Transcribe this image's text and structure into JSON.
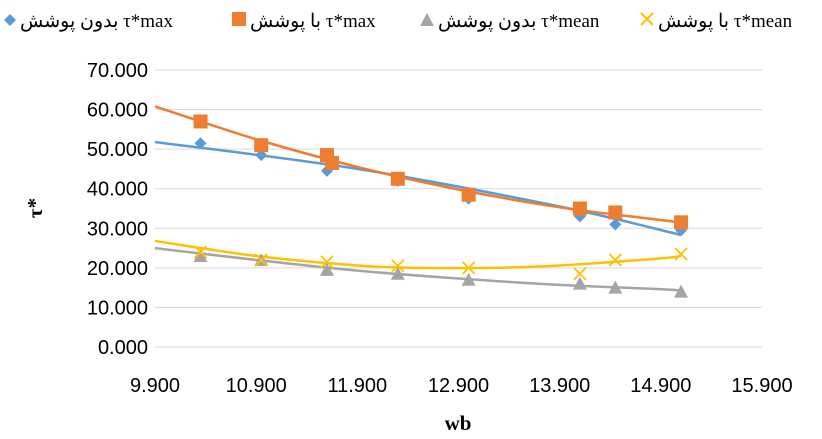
{
  "legend": [
    {
      "label": "بدون پوشش τ*max",
      "color": "#5B9BD5",
      "marker": "diamond"
    },
    {
      "label": "با پوشش τ*max",
      "color": "#ED7D31",
      "marker": "square"
    },
    {
      "label": "بدون پوشش τ*mean",
      "color": "#A5A5A5",
      "marker": "triangle"
    },
    {
      "label": "با پوشش τ*mean",
      "color": "#FFC000",
      "marker": "x"
    }
  ],
  "chart_data": {
    "type": "scatter",
    "xlabel": "wb",
    "ylabel": "τ*",
    "xlim": [
      9.9,
      15.9
    ],
    "ylim": [
      0,
      70
    ],
    "x_ticks": [
      "9.900",
      "10.900",
      "11.900",
      "12.900",
      "13.900",
      "14.900",
      "15.900"
    ],
    "y_ticks": [
      "0.000",
      "10.000",
      "20.000",
      "30.000",
      "40.000",
      "50.000",
      "60.000",
      "70.000"
    ],
    "grid": "horizontal",
    "legend_position": "top",
    "series": [
      {
        "name": "بدون پوشش τ*max",
        "color": "#5B9BD5",
        "marker": "diamond",
        "x": [
          10.35,
          10.95,
          11.6,
          12.3,
          13.0,
          14.1,
          14.45,
          15.1
        ],
        "y": [
          51.5,
          48.5,
          44.5,
          42.0,
          37.5,
          33.0,
          31.0,
          29.5
        ],
        "trendline": {
          "x": [
            9.9,
            11.9,
            13.9,
            15.1
          ],
          "y": [
            51.8,
            45.0,
            35.5,
            28.3
          ]
        }
      },
      {
        "name": "با پوشش τ*max",
        "color": "#ED7D31",
        "marker": "square",
        "x": [
          10.35,
          10.95,
          11.6,
          11.65,
          12.3,
          13.0,
          14.1,
          14.45,
          15.1
        ],
        "y": [
          57.0,
          51.0,
          48.5,
          46.5,
          42.5,
          38.5,
          35.0,
          34.0,
          31.5
        ],
        "trendline": {
          "x": [
            9.9,
            10.9,
            11.9,
            12.9,
            13.9,
            14.9,
            15.1
          ],
          "y": [
            60.8,
            52.5,
            45.5,
            39.8,
            35.3,
            32.1,
            31.5
          ]
        }
      },
      {
        "name": "بدون پوشش τ*mean",
        "color": "#A5A5A5",
        "marker": "triangle",
        "x": [
          10.35,
          10.95,
          11.6,
          12.3,
          13.0,
          14.1,
          14.45,
          15.1
        ],
        "y": [
          23.0,
          22.0,
          19.5,
          18.5,
          17.0,
          16.0,
          15.0,
          14.0
        ],
        "trendline": {
          "x": [
            9.9,
            10.9,
            11.9,
            12.9,
            13.9,
            14.9,
            15.1
          ],
          "y": [
            25.0,
            22.0,
            19.3,
            17.3,
            15.7,
            14.6,
            14.3
          ]
        }
      },
      {
        "name": "با پوشش τ*mean",
        "color": "#FFC000",
        "marker": "x",
        "x": [
          10.35,
          10.95,
          11.6,
          12.3,
          13.0,
          14.1,
          14.45,
          15.1
        ],
        "y": [
          24.0,
          22.0,
          21.5,
          20.5,
          20.0,
          18.5,
          22.0,
          23.5
        ],
        "trendline": {
          "x": [
            9.9,
            10.9,
            11.9,
            12.5,
            13.2,
            13.9,
            14.9,
            15.1
          ],
          "y": [
            26.8,
            23.0,
            20.6,
            20.0,
            20.0,
            20.6,
            22.4,
            23.0
          ]
        }
      }
    ]
  }
}
